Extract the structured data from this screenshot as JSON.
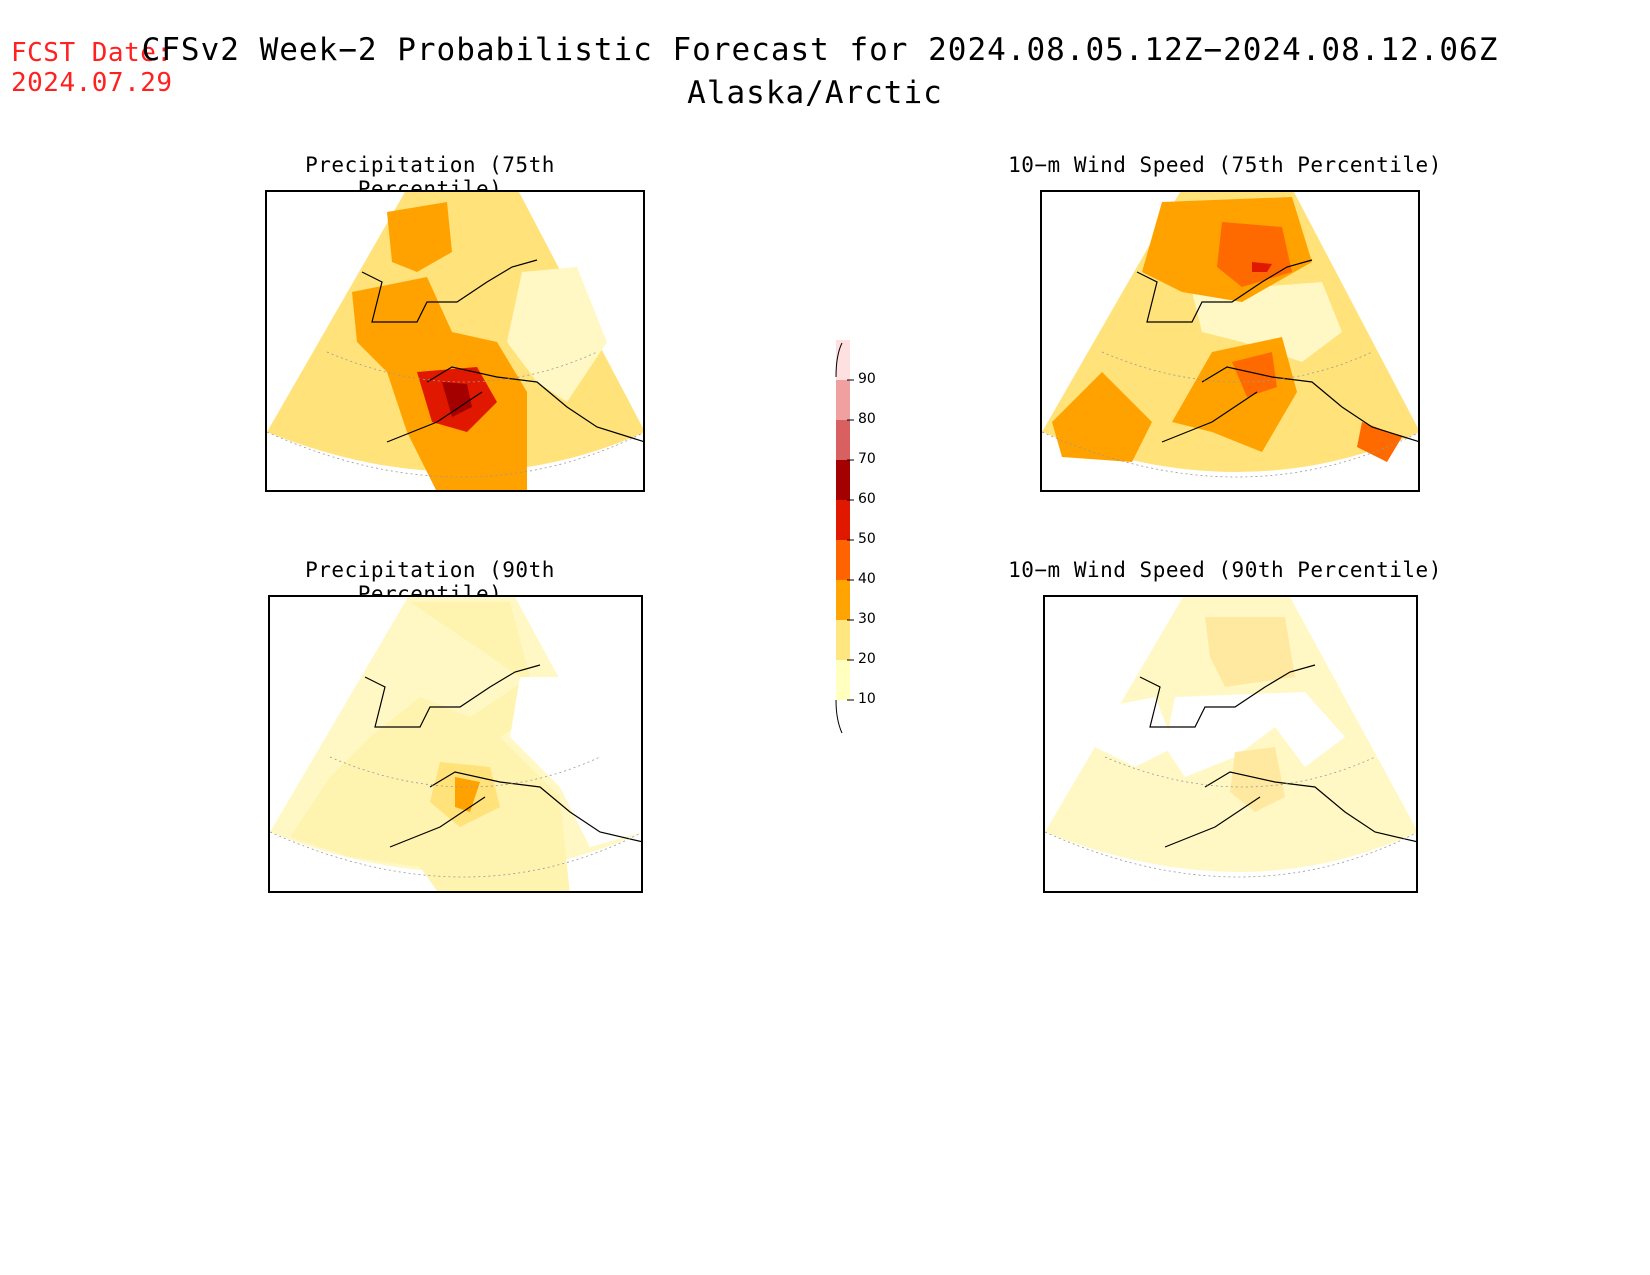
{
  "header": {
    "fcst_label": "FCST Date:",
    "fcst_date": "2024.07.29",
    "title": "CFSv2 Week−2 Probabilistic Forecast for 2024.08.05.12Z−2024.08.12.06Z",
    "subtitle": "Alaska/Arctic"
  },
  "panels": [
    {
      "title": "Precipitation (75th Percentile)"
    },
    {
      "title": "10−m Wind Speed (75th Percentile)"
    },
    {
      "title": "Precipitation (90th Percentile)"
    },
    {
      "title": "10−m Wind Speed (90th Percentile)"
    }
  ],
  "colorbar": {
    "levels": [
      "10",
      "20",
      "30",
      "40",
      "50",
      "60",
      "70",
      "80",
      "90"
    ],
    "colors": [
      "#ffffc0",
      "#ffe680",
      "#ffa400",
      "#ff6400",
      "#e11800",
      "#a50000",
      "#d96060",
      "#f0a0a0",
      "#ffe0e0"
    ]
  },
  "colors": {
    "pale": "#fff8c4",
    "yellow": "#ffe27a",
    "orange": "#ffa200",
    "dark_orange": "#ff6a00",
    "red": "#e11800",
    "dark_red": "#a50000",
    "fcst_text": "#ff2020"
  }
}
